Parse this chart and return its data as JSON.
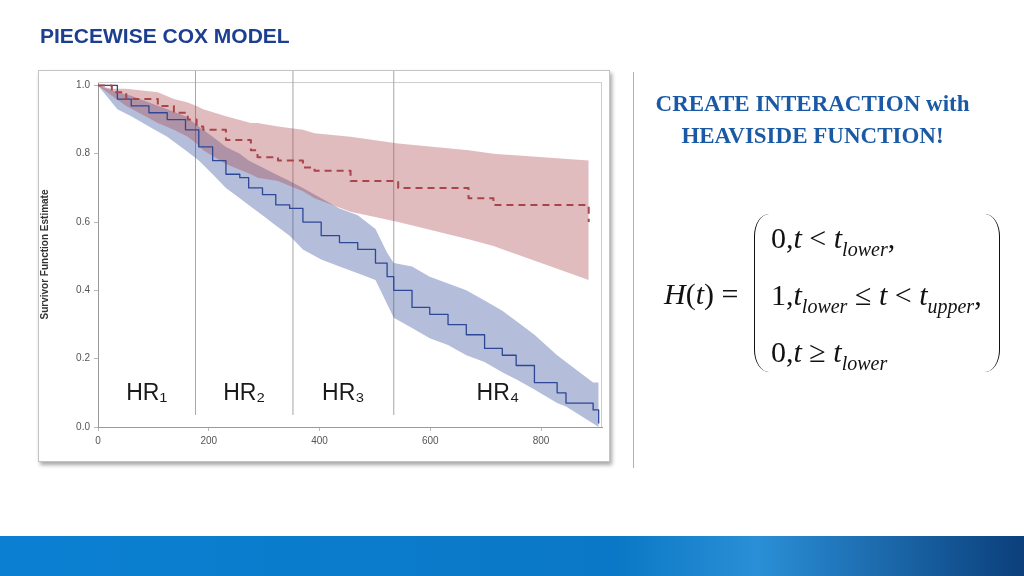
{
  "chart_data": {
    "type": "step",
    "title": "PIECEWISE COX MODEL",
    "ylabel": "Survivor Function Estimate",
    "xlim": [
      0,
      910
    ],
    "xticks": [
      0,
      200,
      400,
      600,
      800
    ],
    "ylim": [
      0,
      1.01
    ],
    "yticks": [
      {
        "value": 0,
        "label": "0.0"
      },
      0.2,
      0.4,
      0.6,
      0.8,
      {
        "value": 1,
        "label": "1.0"
      }
    ],
    "series": [
      {
        "color": "#a9444b",
        "line_style": "dashed",
        "x": [
          0,
          25,
          51,
          108,
          137,
          162,
          178,
          190,
          231,
          276,
          288,
          325,
          370,
          391,
          456,
          542,
          669,
          714,
          886
        ],
        "values": [
          1,
          0.98,
          0.96,
          0.94,
          0.92,
          0.9,
          0.88,
          0.87,
          0.84,
          0.81,
          0.79,
          0.78,
          0.76,
          0.75,
          0.72,
          0.7,
          0.67,
          0.65,
          0.6
        ],
        "lower": [
          1,
          0.97,
          0.94,
          0.89,
          0.87,
          0.85,
          0.83,
          0.81,
          0.77,
          0.74,
          0.73,
          0.72,
          0.69,
          0.67,
          0.63,
          0.6,
          0.55,
          0.53,
          0.43
        ],
        "upper": [
          1,
          0.99,
          0.99,
          0.98,
          0.96,
          0.95,
          0.94,
          0.93,
          0.91,
          0.89,
          0.89,
          0.88,
          0.87,
          0.86,
          0.85,
          0.83,
          0.81,
          0.8,
          0.78
        ]
      },
      {
        "color": "#2e4797",
        "line_style": "solid",
        "x": [
          0,
          35,
          60,
          92,
          125,
          158,
          182,
          207,
          231,
          256,
          272,
          297,
          321,
          346,
          370,
          403,
          436,
          469,
          501,
          522,
          534,
          567,
          599,
          632,
          665,
          698,
          730,
          755,
          788,
          829,
          845,
          894,
          904
        ],
        "values": [
          1,
          0.96,
          0.94,
          0.92,
          0.9,
          0.87,
          0.82,
          0.78,
          0.74,
          0.73,
          0.7,
          0.68,
          0.65,
          0.64,
          0.6,
          0.56,
          0.54,
          0.52,
          0.48,
          0.44,
          0.4,
          0.35,
          0.33,
          0.3,
          0.27,
          0.23,
          0.21,
          0.18,
          0.13,
          0.1,
          0.07,
          0.05,
          0.01
        ],
        "lower": [
          1,
          0.93,
          0.91,
          0.88,
          0.85,
          0.81,
          0.78,
          0.74,
          0.7,
          0.67,
          0.65,
          0.62,
          0.59,
          0.56,
          0.52,
          0.49,
          0.47,
          0.45,
          0.43,
          0.36,
          0.32,
          0.29,
          0.26,
          0.24,
          0.21,
          0.19,
          0.16,
          0.14,
          0.11,
          0.07,
          0.06,
          0.01,
          0
        ],
        "upper": [
          1,
          0.98,
          0.97,
          0.95,
          0.93,
          0.91,
          0.88,
          0.85,
          0.82,
          0.8,
          0.78,
          0.76,
          0.74,
          0.72,
          0.7,
          0.67,
          0.64,
          0.62,
          0.58,
          0.51,
          0.48,
          0.47,
          0.44,
          0.42,
          0.4,
          0.37,
          0.34,
          0.31,
          0.27,
          0.21,
          0.19,
          0.13,
          0.13
        ]
      }
    ],
    "ref_lines": [
      {
        "axis": "x",
        "value": 176,
        "color": "#a6a6a6"
      },
      {
        "axis": "x",
        "value": 352,
        "color": "#a6a6a6"
      },
      {
        "axis": "x",
        "value": 534,
        "color": "#a6a6a6"
      }
    ],
    "annotations": [
      "HR₁",
      "HR₂",
      "HR₃",
      "HR₄",
      "CREATE INTERACTION with HEAVISIDE FUNCTION!",
      "H(t) =",
      "0,t < t$_{lower}$,",
      "1,t$_{lower}$ ≤ t < t$_{upper}$,",
      "0,t ≥ t$_{lower}$"
    ]
  }
}
